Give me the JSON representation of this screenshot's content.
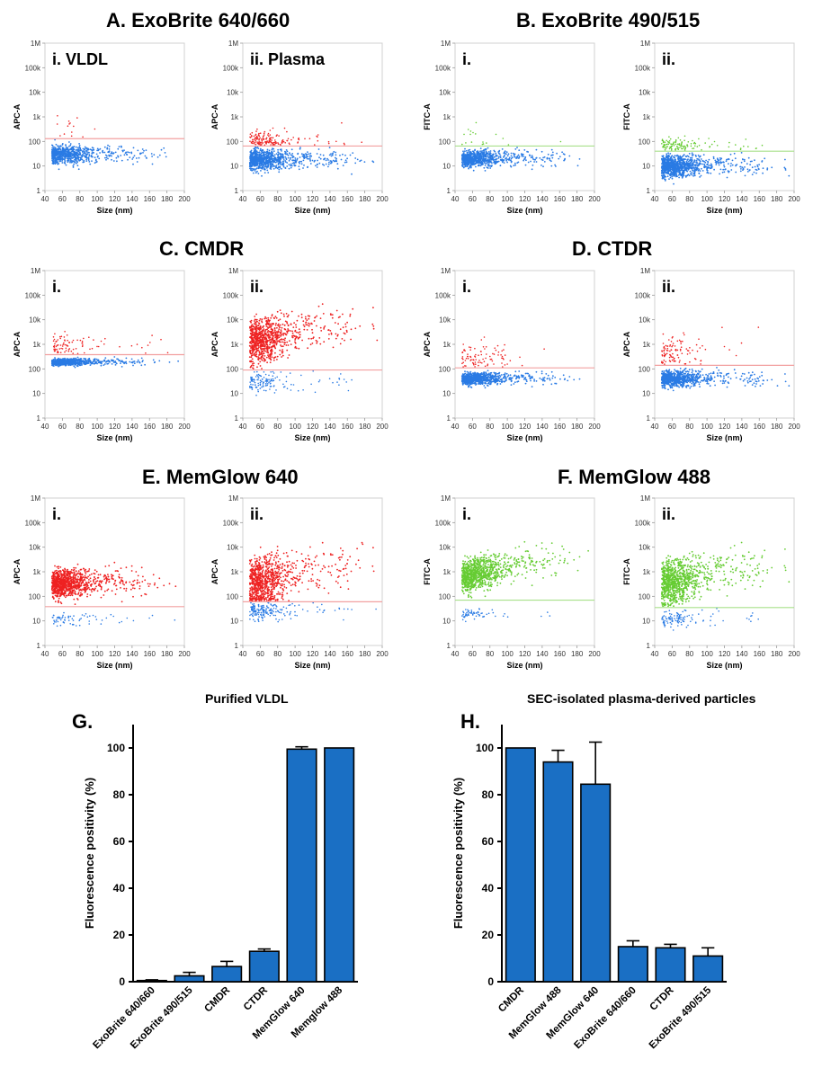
{
  "titles": {
    "A": "A. ExoBrite 640/660",
    "B": "B. ExoBrite 490/515",
    "C": "C. CMDR",
    "D": "D. CTDR",
    "E": "E. MemGlow 640",
    "F": "F. MemGlow 488",
    "G_letter": "G.",
    "H_letter": "H.",
    "G_title": "Purified VLDL",
    "H_title": "SEC-isolated plasma-derived particles"
  },
  "colors": {
    "red": "#ee2222",
    "blue": "#2a7be4",
    "green": "#66cc33",
    "red_gate": "#f2a0a0",
    "green_gate": "#a8e08a",
    "bar": "#1a6fc4"
  },
  "chart_data": [
    {
      "type": "scatter",
      "id": "A-i",
      "sublabel": "i. VLDL",
      "xlabel": "Size (nm)",
      "ylabel": "APC-A",
      "xlim": [
        40,
        200
      ],
      "ylim": [
        1,
        1000000
      ],
      "y_scale": "log",
      "xticks": [
        40,
        60,
        80,
        100,
        120,
        140,
        160,
        180,
        200
      ],
      "yticks": [
        "1",
        "10",
        "100",
        "1k",
        "10k",
        "100k",
        "1M"
      ],
      "gate": 130,
      "gate_color": "red_gate",
      "populations": [
        {
          "color": "blue",
          "n": 700,
          "center": 30,
          "spread": 0.18,
          "pos": "below"
        },
        {
          "color": "red",
          "n": 14,
          "center": 400,
          "spread": 0.35,
          "pos": "above"
        }
      ]
    },
    {
      "type": "scatter",
      "id": "A-ii",
      "sublabel": "ii. Plasma",
      "xlabel": "Size (nm)",
      "ylabel": "APC-A",
      "xlim": [
        40,
        200
      ],
      "ylim": [
        1,
        1000000
      ],
      "y_scale": "log",
      "xticks": [
        40,
        60,
        80,
        100,
        120,
        140,
        160,
        180,
        200
      ],
      "yticks": [
        "1",
        "10",
        "100",
        "1k",
        "10k",
        "100k",
        "1M"
      ],
      "gate": 65,
      "gate_color": "red_gate",
      "populations": [
        {
          "color": "blue",
          "n": 900,
          "center": 18,
          "spread": 0.2,
          "pos": "below"
        },
        {
          "color": "red",
          "n": 160,
          "center": 110,
          "spread": 0.2,
          "pos": "above"
        }
      ]
    },
    {
      "type": "scatter",
      "id": "B-i",
      "sublabel": "i.",
      "xlabel": "Size (nm)",
      "ylabel": "FITC-A",
      "xlim": [
        40,
        200
      ],
      "ylim": [
        1,
        1000000
      ],
      "y_scale": "log",
      "xticks": [
        40,
        60,
        80,
        100,
        120,
        140,
        160,
        180,
        200
      ],
      "yticks": [
        "1",
        "10",
        "100",
        "1k",
        "10k",
        "100k",
        "1M"
      ],
      "gate": 65,
      "gate_color": "green_gate",
      "populations": [
        {
          "color": "blue",
          "n": 800,
          "center": 20,
          "spread": 0.16,
          "pos": "below"
        },
        {
          "color": "green",
          "n": 18,
          "center": 150,
          "spread": 0.3,
          "pos": "above"
        }
      ]
    },
    {
      "type": "scatter",
      "id": "B-ii",
      "sublabel": "ii.",
      "xlabel": "Size (nm)",
      "ylabel": "FITC-A",
      "xlim": [
        40,
        200
      ],
      "ylim": [
        1,
        1000000
      ],
      "y_scale": "log",
      "xticks": [
        40,
        60,
        80,
        100,
        120,
        140,
        160,
        180,
        200
      ],
      "yticks": [
        "1",
        "10",
        "100",
        "1k",
        "10k",
        "100k",
        "1M"
      ],
      "gate": 40,
      "gate_color": "green_gate",
      "populations": [
        {
          "color": "blue",
          "n": 1000,
          "center": 10,
          "spread": 0.22,
          "pos": "below"
        },
        {
          "color": "green",
          "n": 120,
          "center": 70,
          "spread": 0.15,
          "pos": "above"
        }
      ]
    },
    {
      "type": "scatter",
      "id": "C-i",
      "sublabel": "i.",
      "xlabel": "Size (nm)",
      "ylabel": "APC-A",
      "xlim": [
        40,
        200
      ],
      "ylim": [
        1,
        1000000
      ],
      "y_scale": "log",
      "xticks": [
        40,
        60,
        80,
        100,
        120,
        140,
        160,
        180,
        200
      ],
      "yticks": [
        "1",
        "10",
        "100",
        "1k",
        "10k",
        "100k",
        "1M"
      ],
      "gate": 380,
      "gate_color": "red_gate",
      "populations": [
        {
          "color": "blue",
          "n": 700,
          "center": 190,
          "spread": 0.07,
          "pos": "below"
        },
        {
          "color": "red",
          "n": 90,
          "center": 900,
          "spread": 0.25,
          "pos": "above"
        }
      ]
    },
    {
      "type": "scatter",
      "id": "C-ii",
      "sublabel": "ii.",
      "xlabel": "Size (nm)",
      "ylabel": "APC-A",
      "xlim": [
        40,
        200
      ],
      "ylim": [
        1,
        1000000
      ],
      "y_scale": "log",
      "xticks": [
        40,
        60,
        80,
        100,
        120,
        140,
        160,
        180,
        200
      ],
      "yticks": [
        "1",
        "10",
        "100",
        "1k",
        "10k",
        "100k",
        "1M"
      ],
      "gate": 90,
      "gate_color": "red_gate",
      "populations": [
        {
          "color": "blue",
          "n": 140,
          "center": 30,
          "spread": 0.2,
          "pos": "below"
        },
        {
          "color": "red",
          "n": 900,
          "center": 1500,
          "spread": 0.45,
          "pos": "above"
        }
      ]
    },
    {
      "type": "scatter",
      "id": "D-i",
      "sublabel": "i.",
      "xlabel": "Size (nm)",
      "ylabel": "APC-A",
      "xlim": [
        40,
        200
      ],
      "ylim": [
        1,
        1000000
      ],
      "y_scale": "log",
      "xticks": [
        40,
        60,
        80,
        100,
        120,
        140,
        160,
        180,
        200
      ],
      "yticks": [
        "1",
        "10",
        "100",
        "1k",
        "10k",
        "100k",
        "1M"
      ],
      "gate": 110,
      "gate_color": "red_gate",
      "populations": [
        {
          "color": "blue",
          "n": 800,
          "center": 40,
          "spread": 0.12,
          "pos": "below"
        },
        {
          "color": "red",
          "n": 90,
          "center": 300,
          "spread": 0.3,
          "pos": "above"
        }
      ]
    },
    {
      "type": "scatter",
      "id": "D-ii",
      "sublabel": "ii.",
      "xlabel": "Size (nm)",
      "ylabel": "APC-A",
      "xlim": [
        40,
        200
      ],
      "ylim": [
        1,
        1000000
      ],
      "y_scale": "log",
      "xticks": [
        40,
        60,
        80,
        100,
        120,
        140,
        160,
        180,
        200
      ],
      "yticks": [
        "1",
        "10",
        "100",
        "1k",
        "10k",
        "100k",
        "1M"
      ],
      "gate": 140,
      "gate_color": "red_gate",
      "populations": [
        {
          "color": "blue",
          "n": 800,
          "center": 40,
          "spread": 0.16,
          "pos": "below"
        },
        {
          "color": "red",
          "n": 110,
          "center": 400,
          "spread": 0.35,
          "pos": "above"
        }
      ]
    },
    {
      "type": "scatter",
      "id": "E-i",
      "sublabel": "i.",
      "xlabel": "Size (nm)",
      "ylabel": "APC-A",
      "xlim": [
        40,
        200
      ],
      "ylim": [
        1,
        1000000
      ],
      "y_scale": "log",
      "xticks": [
        40,
        60,
        80,
        100,
        120,
        140,
        160,
        180,
        200
      ],
      "yticks": [
        "1",
        "10",
        "100",
        "1k",
        "10k",
        "100k",
        "1M"
      ],
      "gate": 38,
      "gate_color": "red_gate",
      "populations": [
        {
          "color": "blue",
          "n": 70,
          "center": 12,
          "spread": 0.15,
          "pos": "below"
        },
        {
          "color": "red",
          "n": 1000,
          "center": 350,
          "spread": 0.28,
          "pos": "above"
        }
      ]
    },
    {
      "type": "scatter",
      "id": "E-ii",
      "sublabel": "ii.",
      "xlabel": "Size (nm)",
      "ylabel": "APC-A",
      "xlim": [
        40,
        200
      ],
      "ylim": [
        1,
        1000000
      ],
      "y_scale": "log",
      "xticks": [
        40,
        60,
        80,
        100,
        120,
        140,
        160,
        180,
        200
      ],
      "yticks": [
        "1",
        "10",
        "100",
        "1k",
        "10k",
        "100k",
        "1M"
      ],
      "gate": 60,
      "gate_color": "red_gate",
      "populations": [
        {
          "color": "blue",
          "n": 180,
          "center": 25,
          "spread": 0.18,
          "pos": "below"
        },
        {
          "color": "red",
          "n": 900,
          "center": 400,
          "spread": 0.5,
          "pos": "above"
        }
      ]
    },
    {
      "type": "scatter",
      "id": "F-i",
      "sublabel": "i.",
      "xlabel": "Size (nm)",
      "ylabel": "FITC-A",
      "xlim": [
        40,
        200
      ],
      "ylim": [
        1,
        1000000
      ],
      "y_scale": "log",
      "xticks": [
        40,
        60,
        80,
        100,
        120,
        140,
        160,
        180,
        200
      ],
      "yticks": [
        "1",
        "10",
        "100",
        "1k",
        "10k",
        "100k",
        "1M"
      ],
      "gate": 70,
      "gate_color": "green_gate",
      "populations": [
        {
          "color": "blue",
          "n": 60,
          "center": 20,
          "spread": 0.12,
          "pos": "below"
        },
        {
          "color": "green",
          "n": 1000,
          "center": 800,
          "spread": 0.32,
          "pos": "above"
        }
      ]
    },
    {
      "type": "scatter",
      "id": "F-ii",
      "sublabel": "ii.",
      "xlabel": "Size (nm)",
      "ylabel": "FITC-A",
      "xlim": [
        40,
        200
      ],
      "ylim": [
        1,
        1000000
      ],
      "y_scale": "log",
      "xticks": [
        40,
        60,
        80,
        100,
        120,
        140,
        160,
        180,
        200
      ],
      "yticks": [
        "1",
        "10",
        "100",
        "1k",
        "10k",
        "100k",
        "1M"
      ],
      "gate": 35,
      "gate_color": "green_gate",
      "populations": [
        {
          "color": "blue",
          "n": 110,
          "center": 12,
          "spread": 0.15,
          "pos": "below"
        },
        {
          "color": "green",
          "n": 1000,
          "center": 400,
          "spread": 0.45,
          "pos": "above"
        }
      ]
    },
    {
      "type": "bar",
      "id": "G",
      "title": "Purified VLDL",
      "ylabel": "Fluorescence positivity (%)",
      "ylim": [
        0,
        110
      ],
      "yticks": [
        0,
        20,
        40,
        60,
        80,
        100
      ],
      "categories": [
        "ExoBrite 640/660",
        "ExoBrite 490/515",
        "CMDR",
        "CTDR",
        "MemGlow 640",
        "Memglow 488"
      ],
      "values": [
        0.5,
        2.5,
        6.5,
        13,
        99.5,
        100
      ],
      "errors": [
        0.3,
        1.5,
        2.2,
        1.0,
        1.0,
        0
      ]
    },
    {
      "type": "bar",
      "id": "H",
      "title": "SEC-isolated plasma-derived particles",
      "ylabel": "Fluorescence positivity (%)",
      "ylim": [
        0,
        110
      ],
      "yticks": [
        0,
        20,
        40,
        60,
        80,
        100
      ],
      "categories": [
        "CMDR",
        "MemGlow 488",
        "MemGlow 640",
        "ExoBrite 640/660",
        "CTDR",
        "ExoBrite 490/515"
      ],
      "values": [
        100,
        94,
        84.5,
        15,
        14.5,
        11
      ],
      "errors": [
        0,
        5,
        18,
        2.5,
        1.5,
        3.5
      ]
    }
  ]
}
